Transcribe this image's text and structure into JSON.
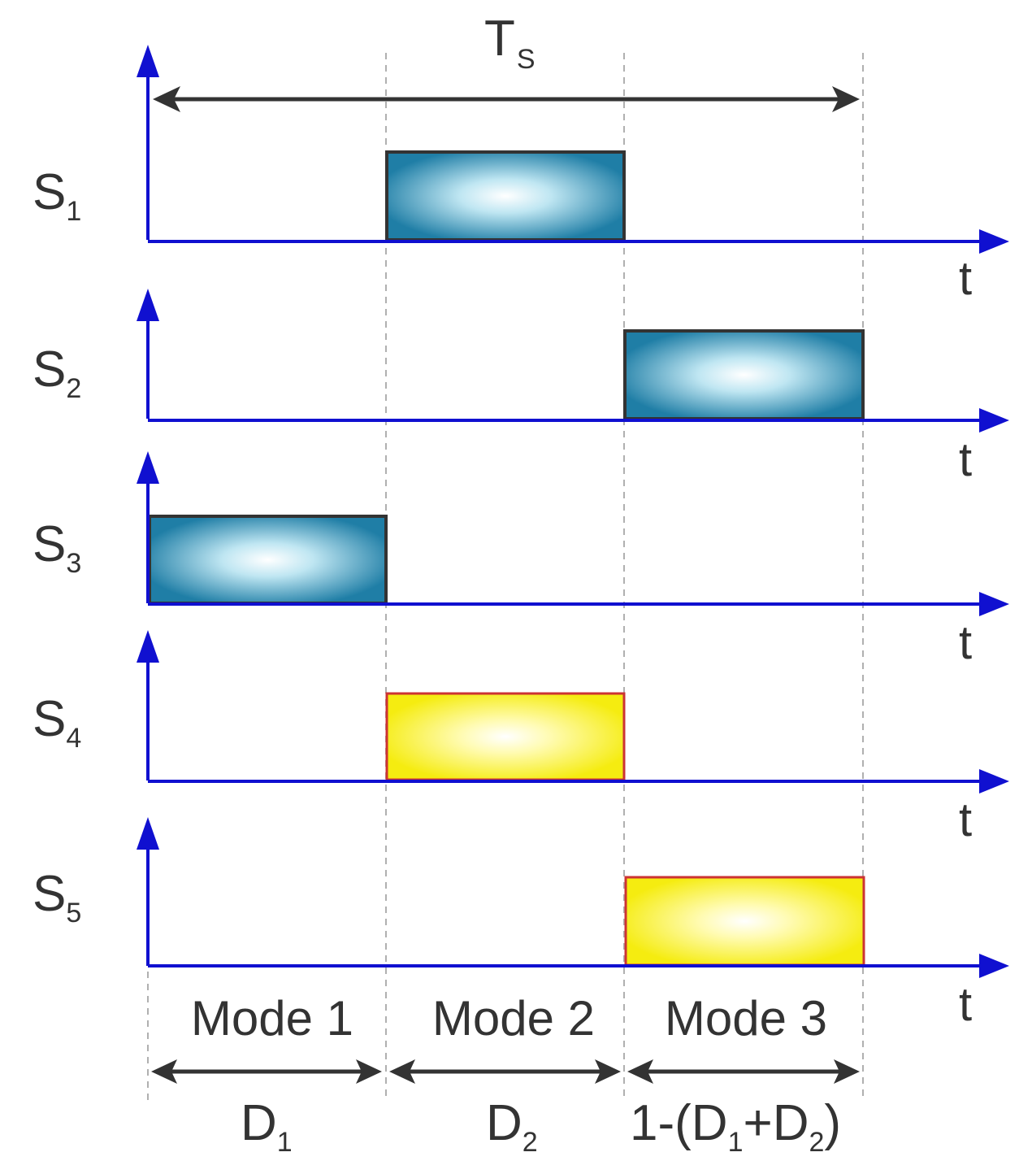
{
  "diagram": {
    "period_label": {
      "main": "T",
      "sub": "S"
    },
    "signals": [
      {
        "main": "S",
        "sub": "1",
        "on_interval": "mode2",
        "style": "blue"
      },
      {
        "main": "S",
        "sub": "2",
        "on_interval": "mode3",
        "style": "blue"
      },
      {
        "main": "S",
        "sub": "3",
        "on_interval": "mode1",
        "style": "blue"
      },
      {
        "main": "S",
        "sub": "4",
        "on_interval": "mode2",
        "style": "yellow"
      },
      {
        "main": "S",
        "sub": "5",
        "on_interval": "mode3",
        "style": "yellow"
      }
    ],
    "time_label": "t",
    "modes": [
      {
        "label": "Mode 1",
        "duration": "D1"
      },
      {
        "label": "Mode 2",
        "duration": "D2"
      },
      {
        "label": "Mode 3",
        "duration": "1-(D1+D2)"
      }
    ],
    "durations": {
      "d1": {
        "main": "D",
        "sub": "1"
      },
      "d2": {
        "main": "D",
        "sub": "2"
      },
      "d3": {
        "p1": "1-(D",
        "s1": "1",
        "p2": "+D",
        "s2": "2",
        "p3": ")"
      }
    },
    "colors": {
      "axis": "#1010d0",
      "arrow": "#333333",
      "blue_pulse_edge": "#1f6e96",
      "blue_pulse_center": "#ffffff",
      "blue_pulse_outline": "#333333",
      "yellow_pulse_edge": "#f2ea00",
      "yellow_pulse_center": "#ffffff",
      "yellow_pulse_outline": "#cc3333",
      "guide": "#aaaaaa"
    }
  }
}
